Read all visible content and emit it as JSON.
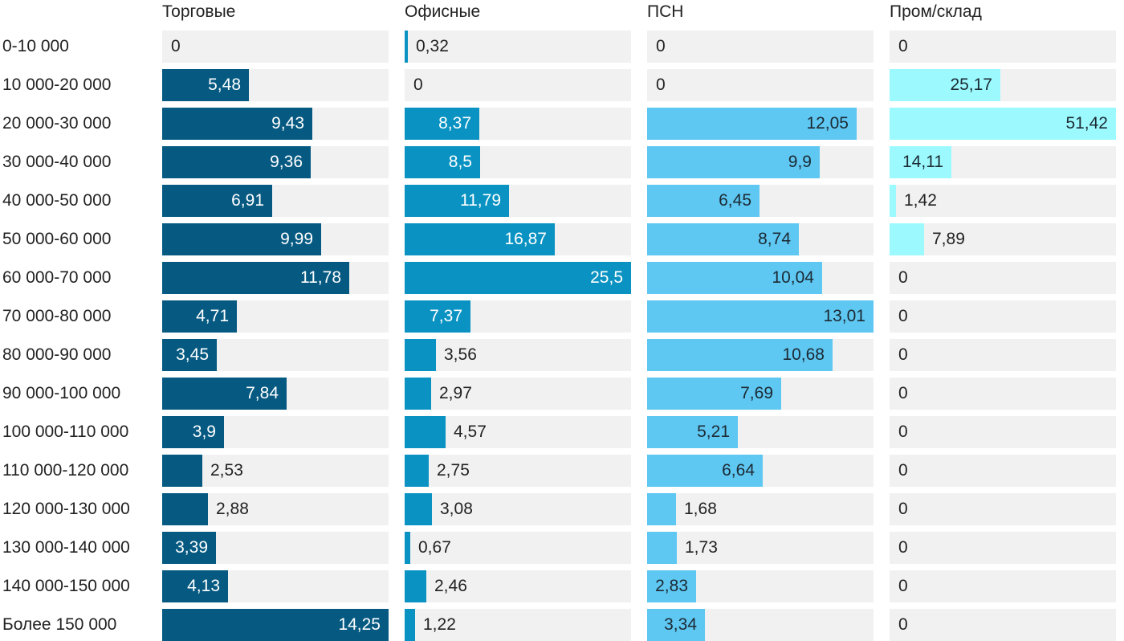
{
  "chart_data": {
    "type": "bar",
    "orientation": "horizontal",
    "layout": "small-multiples",
    "categories": [
      "0-10 000",
      "10 000-20 000",
      "20 000-30 000",
      "30 000-40 000",
      "40 000-50 000",
      "50 000-60 000",
      "60 000-70 000",
      "70 000-80 000",
      "80 000-90 000",
      "90 000-100 000",
      "100 000-110 000",
      "110 000-120 000",
      "120 000-130 000",
      "130 000-140 000",
      "140 000-150 000",
      "Более 150 000"
    ],
    "series": [
      {
        "name": "Торговые",
        "color": "#065a82",
        "xlim": [
          0,
          14.25
        ],
        "values": [
          0,
          5.48,
          9.43,
          9.36,
          6.91,
          9.99,
          11.78,
          4.71,
          3.45,
          7.84,
          3.9,
          2.53,
          2.88,
          3.39,
          4.13,
          14.25
        ],
        "labels": [
          "0",
          "5,48",
          "9,43",
          "9,36",
          "6,91",
          "9,99",
          "11,78",
          "4,71",
          "3,45",
          "7,84",
          "3,9",
          "2,53",
          "2,88",
          "3,39",
          "4,13",
          "14,25"
        ]
      },
      {
        "name": "Офисные",
        "color": "#0a93c2",
        "xlim": [
          0,
          25.5
        ],
        "values": [
          0.32,
          0,
          8.37,
          8.5,
          11.79,
          16.87,
          25.5,
          7.37,
          3.56,
          2.97,
          4.57,
          2.75,
          3.08,
          0.67,
          2.46,
          1.22
        ],
        "labels": [
          "0,32",
          "0",
          "8,37",
          "8,5",
          "11,79",
          "16,87",
          "25,5",
          "7,37",
          "3,56",
          "2,97",
          "4,57",
          "2,75",
          "3,08",
          "0,67",
          "2,46",
          "1,22"
        ]
      },
      {
        "name": "ПСН",
        "color": "#5ec7f2",
        "xlim": [
          0,
          13.01
        ],
        "values": [
          0,
          0,
          12.05,
          9.9,
          6.45,
          8.74,
          10.04,
          13.01,
          10.68,
          7.69,
          5.21,
          6.64,
          1.68,
          1.73,
          2.83,
          3.34
        ],
        "labels": [
          "0",
          "0",
          "12,05",
          "9,9",
          "6,45",
          "8,74",
          "10,04",
          "13,01",
          "10,68",
          "7,69",
          "5,21",
          "6,64",
          "1,68",
          "1,73",
          "2,83",
          "3,34"
        ]
      },
      {
        "name": "Пром/склад",
        "color": "#9cfaff",
        "xlim": [
          0,
          51.42
        ],
        "values": [
          0,
          25.17,
          51.42,
          14.11,
          1.42,
          7.89,
          0,
          0,
          0,
          0,
          0,
          0,
          0,
          0,
          0,
          0
        ],
        "labels": [
          "0",
          "25,17",
          "51,42",
          "14,11",
          "1,42",
          "7,89",
          "0",
          "0",
          "0",
          "0",
          "0",
          "0",
          "0",
          "0",
          "0",
          "0"
        ]
      }
    ],
    "title": "",
    "xlabel": "",
    "ylabel": "",
    "grid": false,
    "legend": "none"
  }
}
